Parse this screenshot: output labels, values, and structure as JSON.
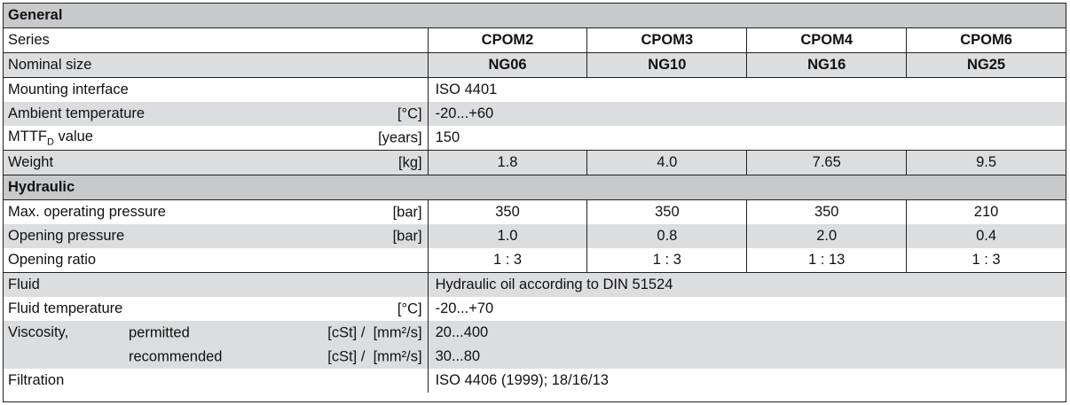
{
  "sections": {
    "general": "General",
    "hydraulic": "Hydraulic"
  },
  "series": {
    "label": "Series",
    "values": [
      "CPOM2",
      "CPOM3",
      "CPOM4",
      "CPOM6"
    ]
  },
  "nominal": {
    "label": "Nominal size",
    "values": [
      "NG06",
      "NG10",
      "NG16",
      "NG25"
    ]
  },
  "mounting": {
    "label": "Mounting interface",
    "value": "ISO 4401"
  },
  "ambient": {
    "label": "Ambient temperature",
    "unit": "[°C]",
    "value": "-20...+60"
  },
  "mttf": {
    "label": "MTTF",
    "sub": "D",
    "label_suffix": " value",
    "unit": "[years]",
    "value": "150"
  },
  "weight": {
    "label": "Weight",
    "unit": "[kg]",
    "values": [
      "1.8",
      "4.0",
      "7.65",
      "9.5"
    ]
  },
  "max_pressure": {
    "label": "Max. operating pressure",
    "unit": "[bar]",
    "values": [
      "350",
      "350",
      "350",
      "210"
    ]
  },
  "opening_pressure": {
    "label": "Opening pressure",
    "unit": "[bar]",
    "values": [
      "1.0",
      "0.8",
      "2.0",
      "0.4"
    ]
  },
  "opening_ratio": {
    "label": "Opening ratio",
    "values": [
      "1 : 3",
      "1 : 3",
      "1 : 13",
      "1 : 3"
    ]
  },
  "fluid": {
    "label": "Fluid",
    "value": "Hydraulic oil according to DIN 51524"
  },
  "fluid_temp": {
    "label": "Fluid temperature",
    "unit": "[°C]",
    "value": "-20...+70"
  },
  "viscosity": {
    "label": "Viscosity,",
    "permitted_label": "permitted",
    "recommended_label": "recommended",
    "unit": "[cSt] /  [mm²/s]",
    "permitted": "20...400",
    "recommended": "30...80"
  },
  "filtration": {
    "label": "Filtration",
    "value": "ISO 4406 (1999); 18/16/13"
  }
}
